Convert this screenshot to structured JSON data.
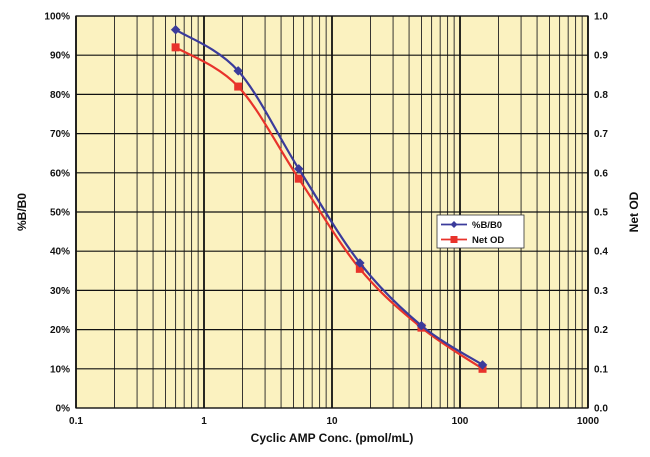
{
  "chart_data": {
    "type": "line",
    "xlabel": "Cyclic AMP Conc. (pmol/mL)",
    "ylabel": "%B/B0",
    "y2label": "Net OD",
    "x_scale": "log",
    "xlim": [
      0.1,
      1000
    ],
    "ylim": [
      0,
      100
    ],
    "y2lim": [
      0,
      1.0
    ],
    "x_ticks": [
      "0.1",
      "1",
      "10",
      "100",
      "1000"
    ],
    "y_ticks": [
      "0%",
      "10%",
      "20%",
      "30%",
      "40%",
      "50%",
      "60%",
      "70%",
      "80%",
      "90%",
      "100%"
    ],
    "y2_ticks": [
      "0.0",
      "0.1",
      "0.2",
      "0.3",
      "0.4",
      "0.5",
      "0.6",
      "0.7",
      "0.8",
      "0.9",
      "1.0"
    ],
    "grid": true,
    "legend_position": "right",
    "background_color": "#fbf2c0",
    "series": [
      {
        "name": "%B/B0",
        "axis": "left",
        "color": "#3b3b9b",
        "marker": "diamond",
        "x": [
          0.6,
          1.85,
          5.5,
          16.5,
          50,
          150
        ],
        "y": [
          96.5,
          86,
          61,
          37,
          21,
          11
        ]
      },
      {
        "name": "Net OD",
        "axis": "right",
        "color": "#e8332b",
        "marker": "square",
        "x": [
          0.6,
          1.85,
          5.5,
          16.5,
          50,
          150
        ],
        "y": [
          0.92,
          0.82,
          0.585,
          0.355,
          0.205,
          0.1
        ]
      }
    ]
  }
}
